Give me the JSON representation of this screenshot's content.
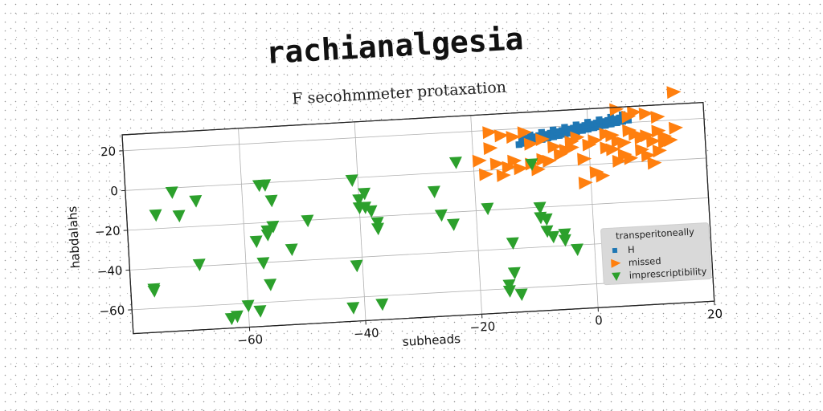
{
  "title": "rachianalgesia",
  "subtitle": "F secohmmeter protaxation",
  "chart_data": {
    "type": "scatter",
    "xlabel": "subheads",
    "ylabel": "habdalahs",
    "xlim": [
      -80,
      20
    ],
    "ylim": [
      -72,
      28
    ],
    "xticks": [
      -60,
      -40,
      -20,
      0,
      20
    ],
    "yticks": [
      -60,
      -40,
      -20,
      0,
      20
    ],
    "grid": true,
    "legend": {
      "title": "transperitoneally",
      "placement": "lower-right"
    },
    "series": [
      {
        "name": "H",
        "marker": "square",
        "color": "#1f77b4",
        "x": [
          -12,
          -11,
          -10,
          -9,
          -8,
          -7,
          -6,
          -5,
          -4,
          -3,
          -2,
          -1,
          0,
          1,
          2,
          3,
          4,
          5,
          6,
          7,
          -11.5,
          -10.5,
          -9.5,
          -8.5,
          -7.5,
          -6.5,
          -5.5,
          -4.5,
          -3.5,
          -2.5,
          -1.5,
          -0.5,
          0.5,
          1.5,
          2.5,
          3.5,
          4.5,
          5.5,
          6.5,
          -10,
          -8,
          -6,
          -4,
          -2,
          0,
          2,
          4,
          6
        ],
        "y": [
          12,
          12.5,
          13,
          13.4,
          13.9,
          14.4,
          14.9,
          15.4,
          15.9,
          16.3,
          16.8,
          17.3,
          17.8,
          18.3,
          18.7,
          19.2,
          19.7,
          20.2,
          20.7,
          21.2,
          14.5,
          15,
          15.5,
          16,
          16.4,
          16.9,
          17.4,
          17.9,
          18.3,
          18.8,
          19.3,
          19.8,
          20.2,
          20.7,
          21.2,
          21.7,
          22.1,
          22.6,
          23,
          16.5,
          17.5,
          18.4,
          19.4,
          20.3,
          21.3,
          22.2,
          23.2,
          24.1
        ]
      },
      {
        "name": "missed",
        "marker": "triangle-right",
        "color": "#ff7f0e",
        "x": [
          -17,
          -15,
          -13,
          -11,
          -10,
          -8,
          -6,
          -4,
          -3,
          -19,
          -16,
          -13,
          -10,
          -8,
          -5,
          -3,
          -18,
          -14,
          -12,
          -9,
          -7,
          -15,
          -17,
          -2,
          0,
          1,
          3,
          4,
          5,
          6,
          7,
          8,
          9,
          10,
          11,
          12,
          13,
          14,
          15,
          5,
          7,
          8,
          10,
          12,
          3,
          6,
          9,
          12,
          1,
          -1,
          4,
          7,
          10,
          13,
          -1,
          2,
          5,
          15,
          11
        ],
        "y": [
          19,
          17,
          16,
          18,
          12,
          14,
          10,
          8,
          12,
          5,
          3,
          4,
          2,
          4,
          6,
          9,
          -2,
          1,
          0,
          -1,
          3,
          -3,
          11,
          14,
          10,
          12,
          15,
          14,
          11,
          10,
          16,
          14,
          12,
          13,
          10,
          15,
          12,
          10,
          16,
          27,
          23,
          25,
          24,
          22,
          8,
          4,
          6,
          5,
          -4,
          3,
          7,
          2,
          3,
          9,
          -9,
          -6,
          1,
          34,
          -1
        ]
      },
      {
        "name": "imprescriptibility",
        "marker": "triangle-down",
        "color": "#2ca02c",
        "x": [
          -75,
          -71,
          -72,
          -76,
          -68,
          -68,
          -76,
          -63,
          -62,
          -60,
          -58,
          -57,
          -56,
          -56,
          -55,
          -52,
          -49,
          -56,
          -57,
          -56,
          -41,
          -40,
          -39,
          -40,
          -38,
          -41,
          -37,
          -42,
          -37,
          -39,
          -37,
          -27,
          -26,
          -24,
          -23,
          -18,
          -13,
          -15,
          -14,
          -14,
          -15,
          -10,
          -9,
          -9,
          -8,
          -8,
          -7,
          -5,
          -3,
          -5,
          -58,
          -55
        ],
        "y": [
          -13,
          -14,
          -2,
          -50,
          -7,
          -39,
          -51,
          -67,
          -66,
          -61,
          -29,
          -40,
          -51,
          -24,
          -22,
          -34,
          -20,
          -26,
          -1,
          -1,
          -1,
          -11,
          -15,
          -15,
          -17,
          -44,
          -23,
          -65,
          -64,
          -8,
          -26,
          -9,
          -21,
          -26,
          5,
          -19,
          -63,
          -58,
          -52,
          -37,
          -61,
          2,
          -20,
          -25,
          -26,
          -32,
          -35,
          -37,
          -42,
          -34,
          -64,
          -9
        ]
      }
    ]
  }
}
